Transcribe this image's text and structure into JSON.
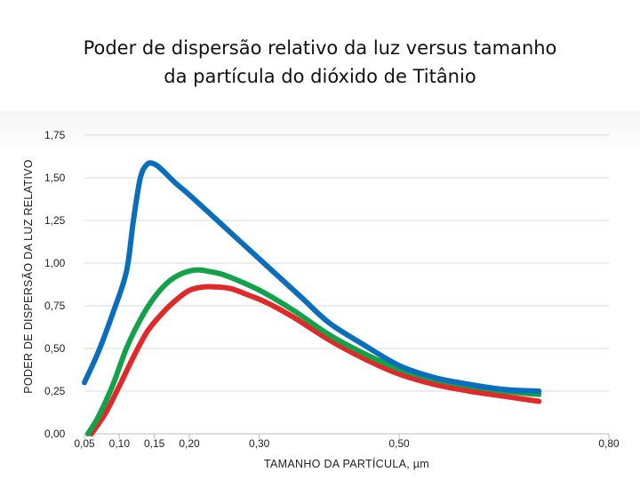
{
  "title": {
    "line1": "Poder de dispersão relativo da luz versus tamanho",
    "line2": "da partícula do dióxido de Titânio"
  },
  "chart_data": {
    "type": "line",
    "title": "Poder de dispersão relativo da luz versus tamanho da partícula do dióxido de Titânio",
    "xlabel": "TAMANHO DA PARTÍCULA, µm",
    "ylabel": "PODER DE DISPERSÃO DA LUZ RELATIVO",
    "xlim": [
      0.05,
      0.8
    ],
    "ylim": [
      0.0,
      1.75
    ],
    "x_ticks": [
      {
        "value": 0.05,
        "label": "0,05"
      },
      {
        "value": 0.1,
        "label": "0,10"
      },
      {
        "value": 0.15,
        "label": "0,15"
      },
      {
        "value": 0.2,
        "label": "0,20"
      },
      {
        "value": 0.3,
        "label": "0,30"
      },
      {
        "value": 0.5,
        "label": "0,50"
      },
      {
        "value": 0.8,
        "label": "0,80"
      }
    ],
    "y_ticks": [
      {
        "value": 0.0,
        "label": "0,00"
      },
      {
        "value": 0.25,
        "label": "0,25"
      },
      {
        "value": 0.5,
        "label": "0,50"
      },
      {
        "value": 0.75,
        "label": "0,75"
      },
      {
        "value": 1.0,
        "label": "1,00"
      },
      {
        "value": 1.25,
        "label": "1,25"
      },
      {
        "value": 1.5,
        "label": "1,50"
      },
      {
        "value": 1.75,
        "label": "1,75"
      }
    ],
    "grid": true,
    "series": [
      {
        "color": "#0a6ebd",
        "x": [
          0.05,
          0.07,
          0.09,
          0.11,
          0.12,
          0.13,
          0.14,
          0.15,
          0.16,
          0.18,
          0.2,
          0.24,
          0.28,
          0.32,
          0.36,
          0.4,
          0.45,
          0.5,
          0.55,
          0.6,
          0.65,
          0.7
        ],
        "y": [
          0.3,
          0.48,
          0.7,
          0.95,
          1.25,
          1.5,
          1.58,
          1.58,
          1.55,
          1.47,
          1.4,
          1.25,
          1.1,
          0.95,
          0.8,
          0.65,
          0.52,
          0.4,
          0.33,
          0.29,
          0.26,
          0.25
        ]
      },
      {
        "color": "#13a24a",
        "x": [
          0.055,
          0.07,
          0.09,
          0.11,
          0.13,
          0.15,
          0.17,
          0.19,
          0.21,
          0.23,
          0.25,
          0.28,
          0.31,
          0.35,
          0.4,
          0.45,
          0.5,
          0.55,
          0.6,
          0.65,
          0.7
        ],
        "y": [
          0.0,
          0.1,
          0.28,
          0.5,
          0.67,
          0.8,
          0.89,
          0.94,
          0.96,
          0.95,
          0.93,
          0.88,
          0.82,
          0.72,
          0.58,
          0.47,
          0.38,
          0.32,
          0.28,
          0.25,
          0.23
        ]
      },
      {
        "color": "#e02a2a",
        "x": [
          0.06,
          0.08,
          0.1,
          0.12,
          0.14,
          0.16,
          0.18,
          0.2,
          0.22,
          0.24,
          0.26,
          0.28,
          0.31,
          0.35,
          0.4,
          0.45,
          0.5,
          0.55,
          0.6,
          0.65,
          0.7
        ],
        "y": [
          0.0,
          0.12,
          0.28,
          0.45,
          0.6,
          0.7,
          0.78,
          0.84,
          0.86,
          0.86,
          0.85,
          0.82,
          0.77,
          0.68,
          0.55,
          0.44,
          0.35,
          0.29,
          0.25,
          0.22,
          0.19
        ]
      }
    ]
  }
}
